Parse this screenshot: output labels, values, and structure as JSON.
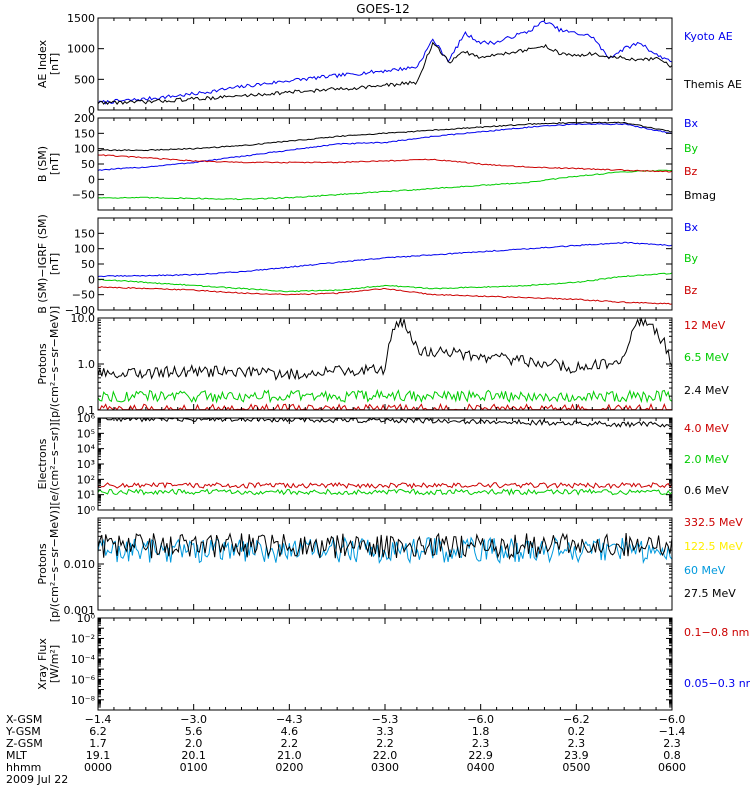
{
  "title": "GOES-12",
  "colors": {
    "black": "#000000",
    "blue": "#0000ee",
    "green": "#00cc00",
    "red": "#cc0000",
    "yellow": "#ffee00",
    "cyan": "#0099dd",
    "white": "#ffffff"
  },
  "chart_data": [
    {
      "id": "ae",
      "type": "line",
      "ylabel": [
        "AE Index",
        "[nT]"
      ],
      "ylim": [
        0,
        1500
      ],
      "yscale": "linear",
      "yticks": [
        0,
        500,
        1000,
        1500
      ],
      "yticklabels": [
        "0",
        "500",
        "1000",
        "1500"
      ],
      "legend": [
        {
          "label": "Kyoto AE",
          "color": "blue"
        },
        {
          "label": "Themis AE",
          "color": "black"
        }
      ],
      "x": [
        0,
        30,
        60,
        90,
        120,
        150,
        180,
        200,
        210,
        220,
        230,
        240,
        250,
        260,
        270,
        280,
        290,
        300,
        310,
        320,
        330,
        340,
        350,
        360
      ],
      "series": [
        {
          "name": "Kyoto AE",
          "color": "blue",
          "values": [
            120,
            180,
            260,
            380,
            480,
            560,
            640,
            700,
            1150,
            800,
            1250,
            1100,
            1100,
            1200,
            1280,
            1450,
            1300,
            1250,
            1200,
            850,
            1000,
            1100,
            900,
            800
          ]
        },
        {
          "name": "Themis AE",
          "color": "black",
          "values": [
            120,
            130,
            180,
            230,
            290,
            340,
            400,
            450,
            1100,
            780,
            950,
            850,
            900,
            950,
            980,
            1050,
            920,
            880,
            920,
            860,
            850,
            800,
            850,
            700
          ]
        }
      ]
    },
    {
      "id": "bsm",
      "type": "line",
      "ylabel": [
        "B (SM)",
        "[nT]"
      ],
      "ylim": [
        -100,
        200
      ],
      "yscale": "linear",
      "yticks": [
        -100,
        -50,
        0,
        50,
        100,
        150,
        200
      ],
      "yticklabels": [
        "",
        "−50",
        "0",
        "50",
        "100",
        "150",
        "200"
      ],
      "legend": [
        {
          "label": "Bx",
          "color": "blue"
        },
        {
          "label": "By",
          "color": "green"
        },
        {
          "label": "Bz",
          "color": "red"
        },
        {
          "label": "Bmag",
          "color": "black"
        }
      ],
      "x": [
        0,
        30,
        60,
        90,
        120,
        150,
        180,
        210,
        240,
        270,
        300,
        330,
        360
      ],
      "series": [
        {
          "name": "Bx",
          "color": "blue",
          "values": [
            30,
            40,
            55,
            75,
            95,
            115,
            120,
            140,
            155,
            170,
            180,
            180,
            150
          ]
        },
        {
          "name": "By",
          "color": "green",
          "values": [
            -60,
            -60,
            -62,
            -65,
            -60,
            -50,
            -40,
            -30,
            -20,
            -10,
            10,
            25,
            30
          ]
        },
        {
          "name": "Bz",
          "color": "red",
          "values": [
            80,
            70,
            60,
            55,
            55,
            55,
            60,
            65,
            50,
            40,
            35,
            30,
            25
          ]
        },
        {
          "name": "Bmag",
          "color": "black",
          "values": [
            95,
            95,
            100,
            110,
            125,
            140,
            150,
            160,
            170,
            180,
            185,
            185,
            155
          ]
        }
      ]
    },
    {
      "id": "bdiff",
      "type": "line",
      "ylabel": [
        "B (SM)−IGRF (SM)",
        "[nT]"
      ],
      "ylim": [
        -100,
        200
      ],
      "yscale": "linear",
      "yticks": [
        -100,
        -50,
        0,
        50,
        100,
        150,
        200
      ],
      "yticklabels": [
        "−100",
        "−50",
        "0",
        "50",
        "100",
        "150",
        ""
      ],
      "legend": [
        {
          "label": "Bx",
          "color": "blue"
        },
        {
          "label": "By",
          "color": "green"
        },
        {
          "label": "Bz",
          "color": "red"
        }
      ],
      "x": [
        0,
        30,
        60,
        90,
        120,
        150,
        180,
        210,
        240,
        270,
        300,
        330,
        360
      ],
      "series": [
        {
          "name": "Bx",
          "color": "blue",
          "values": [
            10,
            12,
            15,
            25,
            40,
            55,
            70,
            80,
            90,
            100,
            110,
            120,
            110
          ]
        },
        {
          "name": "By",
          "color": "green",
          "values": [
            0,
            -10,
            -20,
            -30,
            -40,
            -35,
            -20,
            -30,
            -25,
            -20,
            -10,
            10,
            20
          ]
        },
        {
          "name": "Bz",
          "color": "red",
          "values": [
            -25,
            -30,
            -35,
            -45,
            -50,
            -45,
            -30,
            -50,
            -55,
            -60,
            -65,
            -75,
            -80
          ]
        }
      ]
    },
    {
      "id": "protons_low",
      "type": "line",
      "ylabel": [
        "Protons",
        "[p/(cm²−s−sr−MeV)]"
      ],
      "ylim": [
        0.1,
        10
      ],
      "yscale": "log",
      "yticks": [
        0.1,
        1,
        10
      ],
      "yticklabels": [
        "0.1",
        "1.0",
        "10.0"
      ],
      "legend": [
        {
          "label": "12 MeV",
          "color": "red"
        },
        {
          "label": "6.5 MeV",
          "color": "green"
        },
        {
          "label": "2.4 MeV",
          "color": "black"
        }
      ],
      "x": [
        0,
        60,
        120,
        180,
        190,
        200,
        240,
        300,
        330,
        340,
        360
      ],
      "series": [
        {
          "name": "12 MeV",
          "color": "red",
          "values": [
            0.1,
            0.1,
            0.1,
            0.1,
            0.1,
            0.1,
            0.1,
            0.1,
            0.1,
            0.1,
            0.1
          ]
        },
        {
          "name": "6.5 MeV",
          "color": "green",
          "values": [
            0.2,
            0.2,
            0.2,
            0.2,
            0.2,
            0.2,
            0.2,
            0.2,
            0.2,
            0.2,
            0.2
          ]
        },
        {
          "name": "2.4 MeV",
          "color": "black",
          "values": [
            0.6,
            0.7,
            0.6,
            0.8,
            9,
            2,
            1.5,
            0.8,
            1.2,
            9,
            0.8
          ]
        }
      ]
    },
    {
      "id": "electrons",
      "type": "line",
      "ylabel": [
        "Electrons",
        "[e/(cm²−s−sr)]"
      ],
      "ylim": [
        1,
        1000000
      ],
      "yscale": "log",
      "yticks": [
        1,
        10,
        100,
        1000,
        10000,
        100000,
        1000000
      ],
      "yticklabels": [
        "10⁰",
        "10¹",
        "10²",
        "10³",
        "10⁴",
        "10⁵",
        "10⁶"
      ],
      "legend": [
        {
          "label": "4.0 MeV",
          "color": "red"
        },
        {
          "label": "2.0 MeV",
          "color": "green"
        },
        {
          "label": "0.6 MeV",
          "color": "black"
        }
      ],
      "x": [
        0,
        60,
        120,
        180,
        240,
        300,
        360
      ],
      "series": [
        {
          "name": "4.0 MeV",
          "color": "red",
          "values": [
            40,
            40,
            40,
            40,
            40,
            40,
            40
          ]
        },
        {
          "name": "2.0 MeV",
          "color": "green",
          "values": [
            15,
            15,
            15,
            15,
            15,
            15,
            15
          ]
        },
        {
          "name": "0.6 MeV",
          "color": "black",
          "values": [
            900000,
            850000,
            800000,
            700000,
            600000,
            450000,
            350000
          ]
        }
      ]
    },
    {
      "id": "protons_high",
      "type": "line",
      "ylabel": [
        "Protons",
        "[p/(cm²−s−sr−MeV)]"
      ],
      "ylim": [
        0.001,
        0.1
      ],
      "yscale": "log",
      "yticks": [
        0.001,
        0.01,
        0.1
      ],
      "yticklabels": [
        "0.001",
        "0.010",
        ""
      ],
      "legend": [
        {
          "label": "332.5 MeV",
          "color": "red"
        },
        {
          "label": "122.5 MeV",
          "color": "yellow"
        },
        {
          "label": "60 MeV",
          "color": "cyan"
        },
        {
          "label": "27.5 MeV",
          "color": "black"
        }
      ],
      "x": [
        0,
        60,
        120,
        180,
        240,
        300,
        360
      ],
      "series": [
        {
          "name": "60 MeV",
          "color": "cyan",
          "values": [
            0.02,
            0.02,
            0.02,
            0.02,
            0.02,
            0.02,
            0.02
          ]
        },
        {
          "name": "27.5 MeV",
          "color": "black",
          "values": [
            0.025,
            0.025,
            0.025,
            0.025,
            0.025,
            0.025,
            0.025
          ]
        }
      ]
    },
    {
      "id": "xray",
      "type": "line",
      "ylabel": [
        "Xray Flux",
        "[W/m²]"
      ],
      "ylim": [
        1e-09,
        1
      ],
      "yscale": "log",
      "yticks": [
        1e-09,
        1e-08,
        1e-07,
        1e-06,
        1e-05,
        0.0001,
        0.001,
        0.01,
        0.1,
        1
      ],
      "yticklabels": [
        "",
        "10⁻⁸",
        "",
        "10⁻⁶",
        "",
        "10⁻⁴",
        "",
        "10⁻²",
        "",
        "10⁰"
      ],
      "legend": [
        {
          "label": "0.1−0.8 nm",
          "color": "red"
        },
        {
          "label": "0.05−0.3 nm",
          "color": "blue"
        }
      ],
      "x": [],
      "series": []
    }
  ],
  "ephemeris": {
    "rows": [
      {
        "label": "X-GSM",
        "values": [
          "−1.4",
          "−3.0",
          "−4.3",
          "−5.3",
          "−6.0",
          "−6.2",
          "−6.0"
        ]
      },
      {
        "label": "Y-GSM",
        "values": [
          "6.2",
          "5.6",
          "4.6",
          "3.3",
          "1.8",
          "0.2",
          "−1.4"
        ]
      },
      {
        "label": "Z-GSM",
        "values": [
          "1.7",
          "2.0",
          "2.2",
          "2.2",
          "2.3",
          "2.3",
          "2.3"
        ]
      },
      {
        "label": "MLT",
        "values": [
          "19.1",
          "20.1",
          "21.0",
          "22.0",
          "22.9",
          "23.9",
          "0.8"
        ]
      },
      {
        "label": "hhmm",
        "values": [
          "0000",
          "0100",
          "0200",
          "0300",
          "0400",
          "0500",
          "0600"
        ]
      }
    ],
    "date": "2009 Jul 22"
  }
}
